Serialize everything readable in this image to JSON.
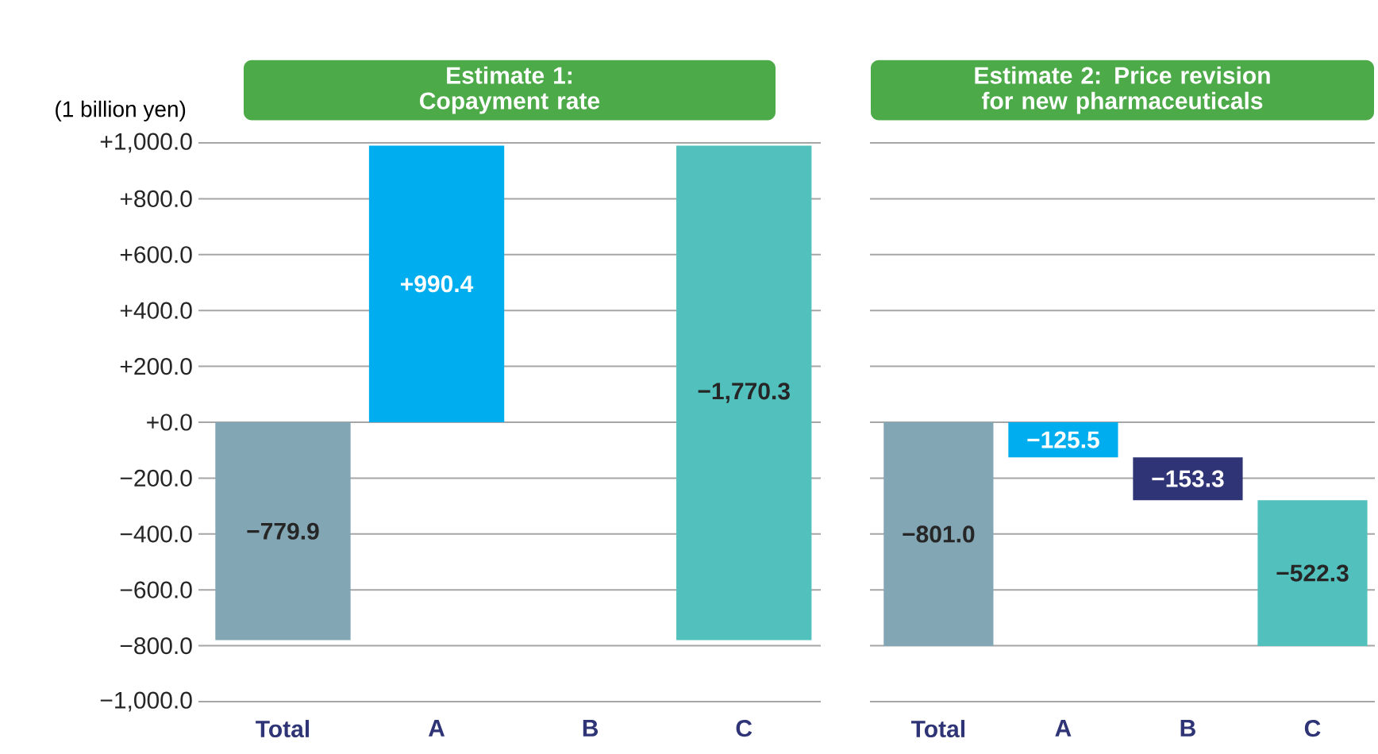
{
  "chart_data": [
    {
      "type": "bar",
      "title": "Estimate 1: Copayment rate",
      "ylabel": "(1 billion yen)",
      "categories": [
        "Total",
        "A",
        "B",
        "C"
      ],
      "values": [
        -779.9,
        990.4,
        null,
        -1770.3
      ],
      "base": [
        0,
        0,
        null,
        990.4
      ],
      "colors": [
        "#82a6b4",
        "#00adee",
        null,
        "#52c1bd"
      ],
      "value_labels": [
        "−779.9",
        "+990.4",
        null,
        "−1,770.3"
      ],
      "ylim": [
        -1000,
        1000
      ],
      "yticks": [
        {
          "value": 1000,
          "label": "+1,000.0"
        },
        {
          "value": 800,
          "label": "+800.0"
        },
        {
          "value": 600,
          "label": "+600.0"
        },
        {
          "value": 400,
          "label": "+400.0"
        },
        {
          "value": 200,
          "label": "+200.0"
        },
        {
          "value": 0,
          "label": "+0.0"
        },
        {
          "value": -200,
          "label": "−200.0"
        },
        {
          "value": -400,
          "label": "−400.0"
        },
        {
          "value": -600,
          "label": "−600.0"
        },
        {
          "value": -800,
          "label": "−800.0"
        },
        {
          "value": -1000,
          "label": "−1,000.0"
        }
      ],
      "grid": "y"
    },
    {
      "type": "bar",
      "title": "Estimate 2: Price revision for new pharmaceuticals",
      "categories": [
        "Total",
        "A",
        "B",
        "C"
      ],
      "values": [
        -801.0,
        -125.5,
        -153.3,
        -522.3
      ],
      "base": [
        0,
        0,
        -125.5,
        -278.8
      ],
      "colors": [
        "#82a6b4",
        "#00adee",
        "#2e3475",
        "#52c1bd"
      ],
      "value_labels": [
        "−801.0",
        "−125.5",
        "−153.3",
        "−522.3"
      ],
      "ylim": [
        -1000,
        1000
      ],
      "yticks": [
        1000,
        800,
        600,
        400,
        200,
        0,
        -200,
        -400,
        -600,
        -800,
        -1000
      ],
      "tick_labels": "x",
      "grid": "y"
    }
  ]
}
